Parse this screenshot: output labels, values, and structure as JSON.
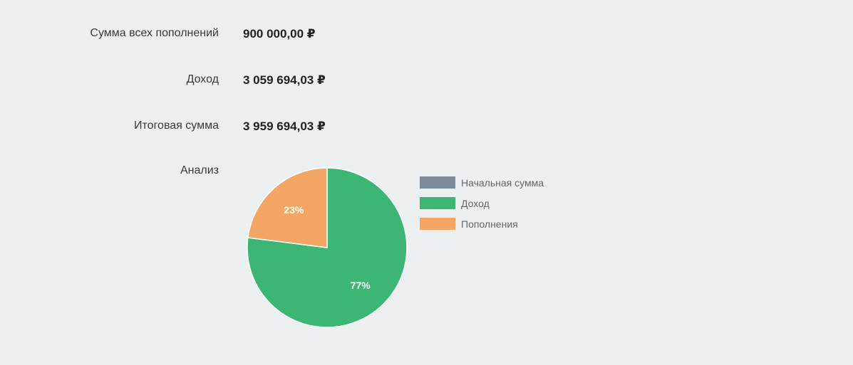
{
  "summary": {
    "deposits": {
      "label": "Сумма всех пополнений",
      "value": "900 000,00 ₽"
    },
    "income": {
      "label": "Доход",
      "value": "3 059 694,03 ₽"
    },
    "total": {
      "label": "Итоговая сумма",
      "value": "3 959 694,03 ₽"
    }
  },
  "analysis": {
    "label": "Анализ"
  },
  "chart_data": {
    "type": "pie",
    "title": "",
    "legend_position": "right",
    "slices": [
      {
        "label": "Начальная сумма",
        "value": 0,
        "color": "#7a8b9a",
        "display": ""
      },
      {
        "label": "Доход",
        "value": 77,
        "color": "#3db574",
        "display": "77%"
      },
      {
        "label": "Пополнения",
        "value": 23,
        "color": "#f4a764",
        "display": "23%"
      }
    ]
  }
}
